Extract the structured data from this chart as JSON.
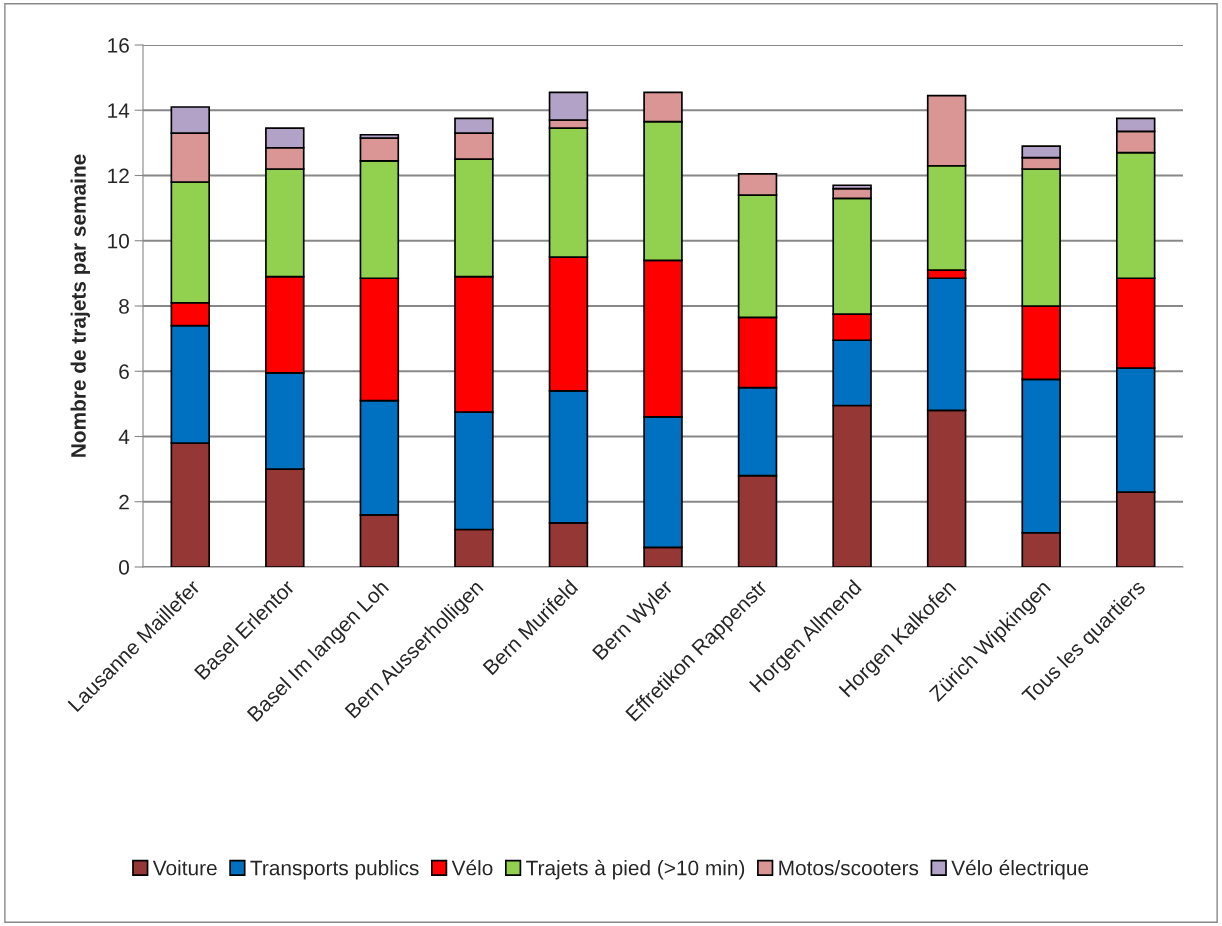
{
  "chart_data": {
    "type": "bar",
    "stacked": true,
    "ylabel": "Nombre de trajets par semaine",
    "categories": [
      "Lausanne Maillefer",
      "Basel Erlentor",
      "Basel Im langen Loh",
      "Bern Ausserholligen",
      "Bern Murifeld",
      "Bern Wyler",
      "Effretikon Rappenstr",
      "Horgen Allmend",
      "Horgen Kalkofen",
      "Zürich Wipkingen",
      "Tous les quartiers"
    ],
    "series": [
      {
        "name": "Voiture",
        "color": "#953735",
        "values": [
          3.8,
          3.0,
          1.6,
          1.15,
          1.35,
          0.6,
          2.8,
          4.95,
          4.8,
          1.05,
          2.3
        ]
      },
      {
        "name": "Transports publics",
        "color": "#0070c0",
        "values": [
          3.6,
          2.95,
          3.5,
          3.6,
          4.05,
          4.0,
          2.7,
          2.0,
          4.05,
          4.7,
          3.8
        ]
      },
      {
        "name": "Vélo",
        "color": "#ff0000",
        "values": [
          0.7,
          2.95,
          3.75,
          4.15,
          4.1,
          4.8,
          2.15,
          0.8,
          0.25,
          2.25,
          2.75
        ]
      },
      {
        "name": "Trajets à pied (>10 min)",
        "color": "#92d050",
        "values": [
          3.7,
          3.3,
          3.6,
          3.6,
          3.95,
          4.25,
          3.75,
          3.55,
          3.2,
          4.2,
          3.85
        ]
      },
      {
        "name": "Motos/scooters",
        "color": "#d99694",
        "values": [
          1.5,
          0.65,
          0.7,
          0.8,
          0.25,
          0.9,
          0.65,
          0.3,
          2.15,
          0.35,
          0.65
        ]
      },
      {
        "name": "Vélo électrique",
        "color": "#b3a2c7",
        "values": [
          0.8,
          0.6,
          0.1,
          0.45,
          0.85,
          null,
          null,
          0.1,
          null,
          0.35,
          0.4
        ]
      }
    ],
    "ylim": [
      0,
      16
    ],
    "yticks": [
      0,
      2,
      4,
      6,
      8,
      10,
      12,
      14,
      16
    ],
    "grid": "y",
    "legend": "bottom"
  }
}
